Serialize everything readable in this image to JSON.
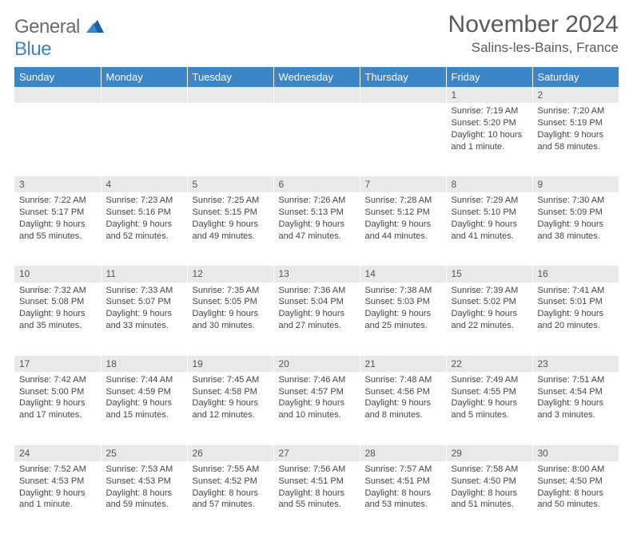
{
  "logo": {
    "text_general": "General",
    "text_blue": "Blue"
  },
  "header": {
    "month_title": "November 2024",
    "location": "Salins-les-Bains, France"
  },
  "weekdays": [
    "Sunday",
    "Monday",
    "Tuesday",
    "Wednesday",
    "Thursday",
    "Friday",
    "Saturday"
  ],
  "colors": {
    "header_bg": "#3c85c6",
    "header_text": "#ffffff",
    "daynum_bg": "#e9e9e9",
    "body_text": "#454545",
    "title_text": "#5a5a5a"
  },
  "weeks": [
    [
      null,
      null,
      null,
      null,
      null,
      {
        "n": "1",
        "sr": "Sunrise: 7:19 AM",
        "ss": "Sunset: 5:20 PM",
        "dl1": "Daylight: 10 hours",
        "dl2": "and 1 minute."
      },
      {
        "n": "2",
        "sr": "Sunrise: 7:20 AM",
        "ss": "Sunset: 5:19 PM",
        "dl1": "Daylight: 9 hours",
        "dl2": "and 58 minutes."
      }
    ],
    [
      {
        "n": "3",
        "sr": "Sunrise: 7:22 AM",
        "ss": "Sunset: 5:17 PM",
        "dl1": "Daylight: 9 hours",
        "dl2": "and 55 minutes."
      },
      {
        "n": "4",
        "sr": "Sunrise: 7:23 AM",
        "ss": "Sunset: 5:16 PM",
        "dl1": "Daylight: 9 hours",
        "dl2": "and 52 minutes."
      },
      {
        "n": "5",
        "sr": "Sunrise: 7:25 AM",
        "ss": "Sunset: 5:15 PM",
        "dl1": "Daylight: 9 hours",
        "dl2": "and 49 minutes."
      },
      {
        "n": "6",
        "sr": "Sunrise: 7:26 AM",
        "ss": "Sunset: 5:13 PM",
        "dl1": "Daylight: 9 hours",
        "dl2": "and 47 minutes."
      },
      {
        "n": "7",
        "sr": "Sunrise: 7:28 AM",
        "ss": "Sunset: 5:12 PM",
        "dl1": "Daylight: 9 hours",
        "dl2": "and 44 minutes."
      },
      {
        "n": "8",
        "sr": "Sunrise: 7:29 AM",
        "ss": "Sunset: 5:10 PM",
        "dl1": "Daylight: 9 hours",
        "dl2": "and 41 minutes."
      },
      {
        "n": "9",
        "sr": "Sunrise: 7:30 AM",
        "ss": "Sunset: 5:09 PM",
        "dl1": "Daylight: 9 hours",
        "dl2": "and 38 minutes."
      }
    ],
    [
      {
        "n": "10",
        "sr": "Sunrise: 7:32 AM",
        "ss": "Sunset: 5:08 PM",
        "dl1": "Daylight: 9 hours",
        "dl2": "and 35 minutes."
      },
      {
        "n": "11",
        "sr": "Sunrise: 7:33 AM",
        "ss": "Sunset: 5:07 PM",
        "dl1": "Daylight: 9 hours",
        "dl2": "and 33 minutes."
      },
      {
        "n": "12",
        "sr": "Sunrise: 7:35 AM",
        "ss": "Sunset: 5:05 PM",
        "dl1": "Daylight: 9 hours",
        "dl2": "and 30 minutes."
      },
      {
        "n": "13",
        "sr": "Sunrise: 7:36 AM",
        "ss": "Sunset: 5:04 PM",
        "dl1": "Daylight: 9 hours",
        "dl2": "and 27 minutes."
      },
      {
        "n": "14",
        "sr": "Sunrise: 7:38 AM",
        "ss": "Sunset: 5:03 PM",
        "dl1": "Daylight: 9 hours",
        "dl2": "and 25 minutes."
      },
      {
        "n": "15",
        "sr": "Sunrise: 7:39 AM",
        "ss": "Sunset: 5:02 PM",
        "dl1": "Daylight: 9 hours",
        "dl2": "and 22 minutes."
      },
      {
        "n": "16",
        "sr": "Sunrise: 7:41 AM",
        "ss": "Sunset: 5:01 PM",
        "dl1": "Daylight: 9 hours",
        "dl2": "and 20 minutes."
      }
    ],
    [
      {
        "n": "17",
        "sr": "Sunrise: 7:42 AM",
        "ss": "Sunset: 5:00 PM",
        "dl1": "Daylight: 9 hours",
        "dl2": "and 17 minutes."
      },
      {
        "n": "18",
        "sr": "Sunrise: 7:44 AM",
        "ss": "Sunset: 4:59 PM",
        "dl1": "Daylight: 9 hours",
        "dl2": "and 15 minutes."
      },
      {
        "n": "19",
        "sr": "Sunrise: 7:45 AM",
        "ss": "Sunset: 4:58 PM",
        "dl1": "Daylight: 9 hours",
        "dl2": "and 12 minutes."
      },
      {
        "n": "20",
        "sr": "Sunrise: 7:46 AM",
        "ss": "Sunset: 4:57 PM",
        "dl1": "Daylight: 9 hours",
        "dl2": "and 10 minutes."
      },
      {
        "n": "21",
        "sr": "Sunrise: 7:48 AM",
        "ss": "Sunset: 4:56 PM",
        "dl1": "Daylight: 9 hours",
        "dl2": "and 8 minutes."
      },
      {
        "n": "22",
        "sr": "Sunrise: 7:49 AM",
        "ss": "Sunset: 4:55 PM",
        "dl1": "Daylight: 9 hours",
        "dl2": "and 5 minutes."
      },
      {
        "n": "23",
        "sr": "Sunrise: 7:51 AM",
        "ss": "Sunset: 4:54 PM",
        "dl1": "Daylight: 9 hours",
        "dl2": "and 3 minutes."
      }
    ],
    [
      {
        "n": "24",
        "sr": "Sunrise: 7:52 AM",
        "ss": "Sunset: 4:53 PM",
        "dl1": "Daylight: 9 hours",
        "dl2": "and 1 minute."
      },
      {
        "n": "25",
        "sr": "Sunrise: 7:53 AM",
        "ss": "Sunset: 4:53 PM",
        "dl1": "Daylight: 8 hours",
        "dl2": "and 59 minutes."
      },
      {
        "n": "26",
        "sr": "Sunrise: 7:55 AM",
        "ss": "Sunset: 4:52 PM",
        "dl1": "Daylight: 8 hours",
        "dl2": "and 57 minutes."
      },
      {
        "n": "27",
        "sr": "Sunrise: 7:56 AM",
        "ss": "Sunset: 4:51 PM",
        "dl1": "Daylight: 8 hours",
        "dl2": "and 55 minutes."
      },
      {
        "n": "28",
        "sr": "Sunrise: 7:57 AM",
        "ss": "Sunset: 4:51 PM",
        "dl1": "Daylight: 8 hours",
        "dl2": "and 53 minutes."
      },
      {
        "n": "29",
        "sr": "Sunrise: 7:58 AM",
        "ss": "Sunset: 4:50 PM",
        "dl1": "Daylight: 8 hours",
        "dl2": "and 51 minutes."
      },
      {
        "n": "30",
        "sr": "Sunrise: 8:00 AM",
        "ss": "Sunset: 4:50 PM",
        "dl1": "Daylight: 8 hours",
        "dl2": "and 50 minutes."
      }
    ]
  ]
}
